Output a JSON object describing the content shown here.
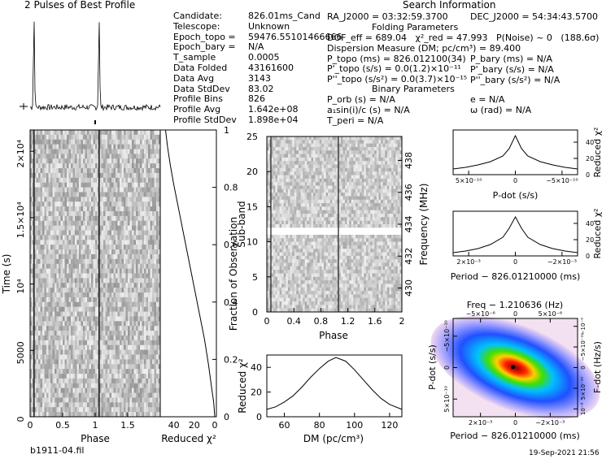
{
  "title_profile": "2 Pulses of Best Profile",
  "search_title": "Search Information",
  "folding_title": "Folding Parameters",
  "binary_title": "Binary Parameters",
  "footer_file": "b1911-04.fil",
  "footer_date": "19-Sep-2021 21:56",
  "info_left": [
    {
      "label": "Candidate:",
      "value": "826.01ms_Cand"
    },
    {
      "label": "Telescope:",
      "value": "Unknown"
    },
    {
      "label": "Epoch_topo =",
      "value": "59476.55101466666"
    },
    {
      "label": "Epoch_bary =",
      "value": "N/A"
    },
    {
      "label": "T_sample",
      "value": "0.0005"
    },
    {
      "label": "Data Folded",
      "value": "43161600"
    },
    {
      "label": "Data Avg",
      "value": "3143"
    },
    {
      "label": "Data StdDev",
      "value": "83.02"
    },
    {
      "label": "Profile Bins",
      "value": "826"
    },
    {
      "label": "Profile Avg",
      "value": "1.642e+08"
    },
    {
      "label": "Profile StdDev",
      "value": "1.898e+04"
    }
  ],
  "ra": "RA_J2000 = 03:32:59.3700",
  "dec": "DEC_J2000 = 54:34:43.5700",
  "folding_lines": [
    "DOF_eff = 689.04   χ²_red = 47.993   P(Noise) ~ 0   (188.6σ)",
    "Dispersion Measure (DM; pc/cm³) = 89.400",
    "P_topo (ms) = 826.012100(34)",
    "P'_topo (s/s) = 0.0(1.2)×10⁻¹¹",
    "P''_topo (s/s²) = 0.0(3.7)×10⁻¹⁵"
  ],
  "bary_lines": [
    "P_bary (ms) = N/A",
    "P'_bary (s/s) = N/A",
    "P''_bary (s/s²) = N/A"
  ],
  "binary_lines_left": [
    "P_orb (s) = N/A",
    "a₁sin(i)/c (s) = N/A",
    "T_peri = N/A"
  ],
  "binary_lines_right": [
    "e = N/A",
    "ω (rad) = N/A"
  ],
  "chart_data": [
    {
      "type": "line",
      "id": "profile",
      "title": "2 Pulses of Best Profile",
      "description_peaks_phase": [
        0.06,
        1.06
      ],
      "xlim": [
        0,
        2
      ]
    },
    {
      "type": "heatmap",
      "id": "time_phase",
      "xlabel": "Phase",
      "ylabel": "Time (s)",
      "xlim": [
        0,
        2
      ],
      "ylim": [
        0,
        21600
      ],
      "xticks": [
        "0",
        "0.5",
        "1",
        "1.5"
      ],
      "yticks": [
        "0",
        "5000",
        "10⁴",
        "1.5×10⁴",
        "2×10⁴"
      ],
      "pulse_phase": [
        0.06,
        1.06
      ]
    },
    {
      "type": "line",
      "id": "time_chi2",
      "xlabel": "Reduced χ²",
      "ylabel": "Fraction of Observation",
      "xticks": [
        "40",
        "20",
        "0"
      ],
      "yticks": [
        "0",
        "0.2",
        "0.4",
        "0.6",
        "0.8",
        "1"
      ],
      "x": [
        0,
        1,
        3,
        6,
        10,
        15,
        20,
        25,
        30,
        35,
        40,
        43,
        46,
        48
      ],
      "y": [
        0,
        0.05,
        0.1,
        0.18,
        0.27,
        0.36,
        0.45,
        0.54,
        0.63,
        0.72,
        0.81,
        0.87,
        0.94,
        1.0
      ]
    },
    {
      "type": "heatmap",
      "id": "subband_phase",
      "xlabel": "Phase",
      "ylabel": "Sub-band",
      "y2label": "Frequency (MHz)",
      "xlim": [
        0,
        2
      ],
      "ylim": [
        0,
        25
      ],
      "xticks": [
        "0",
        "0.4",
        "0.8",
        "1.2",
        "1.6",
        "2"
      ],
      "yticks": [
        "0",
        "5",
        "10",
        "15",
        "20",
        "25"
      ],
      "y2ticks": [
        "430",
        "432",
        "434",
        "436",
        "438"
      ],
      "masked_subband": 11
    },
    {
      "type": "line",
      "id": "dm_chi2",
      "xlabel": "DM (pc/cm³)",
      "ylabel": "Reduced χ²",
      "xlim": [
        50,
        127
      ],
      "ylim": [
        0,
        50
      ],
      "xticks": [
        "60",
        "80",
        "100",
        "120"
      ],
      "yticks": [
        "0",
        "20",
        "40"
      ],
      "x": [
        50,
        55,
        60,
        65,
        70,
        75,
        80,
        85,
        89.4,
        95,
        100,
        105,
        110,
        115,
        120,
        127
      ],
      "y": [
        6,
        8,
        12,
        17,
        24,
        32,
        39,
        45,
        48,
        45,
        38,
        30,
        22,
        15,
        10,
        6
      ]
    },
    {
      "type": "line",
      "id": "pdot_chi2",
      "xlabel": "P-dot (s/s)",
      "ylabel": "Reduced χ²",
      "xticks": [
        "5×10⁻¹⁰",
        "0",
        "−5×10⁻¹⁰"
      ],
      "yticks": [
        "0",
        "20",
        "40"
      ],
      "x": [
        1,
        0.8,
        0.6,
        0.4,
        0.2,
        0.1,
        0,
        -0.1,
        -0.2,
        -0.4,
        -0.6,
        -0.8,
        -1
      ],
      "y": [
        7,
        9,
        12,
        16,
        23,
        32,
        48,
        32,
        23,
        16,
        12,
        9,
        7
      ]
    },
    {
      "type": "line",
      "id": "period_chi2",
      "xlabel": "Period − 826.01210000 (ms)",
      "ylabel": "Reduced χ²",
      "xticks": [
        "2×10⁻³",
        "0",
        "−2×10⁻³"
      ],
      "yticks": [
        "0",
        "20",
        "40"
      ],
      "x": [
        1,
        0.8,
        0.6,
        0.4,
        0.2,
        0.1,
        0,
        -0.1,
        -0.2,
        -0.4,
        -0.6,
        -0.8,
        -1
      ],
      "y": [
        4,
        6,
        9,
        14,
        23,
        34,
        48,
        34,
        23,
        14,
        9,
        6,
        4
      ]
    },
    {
      "type": "heatmap",
      "id": "ppdot",
      "top_label": "Freq − 1.210636 (Hz)",
      "xlabel": "Period − 826.01210000 (ms)",
      "ylabel": "P-dot (s/s)",
      "y2label": "F-dot (Hz/s)",
      "xticks": [
        "2×10⁻³",
        "0",
        "−2×10⁻³"
      ],
      "x2ticks": [
        "−5×10⁻⁶",
        "0",
        "5×10⁻⁶"
      ],
      "yticks": [
        "5×10⁻¹⁰",
        "0",
        "−5×10⁻¹⁰"
      ],
      "y2ticks": [
        "−10⁻⁹",
        "−5×10⁻¹⁰",
        "0",
        "5×10⁻¹⁰",
        "10⁻⁹"
      ]
    }
  ]
}
